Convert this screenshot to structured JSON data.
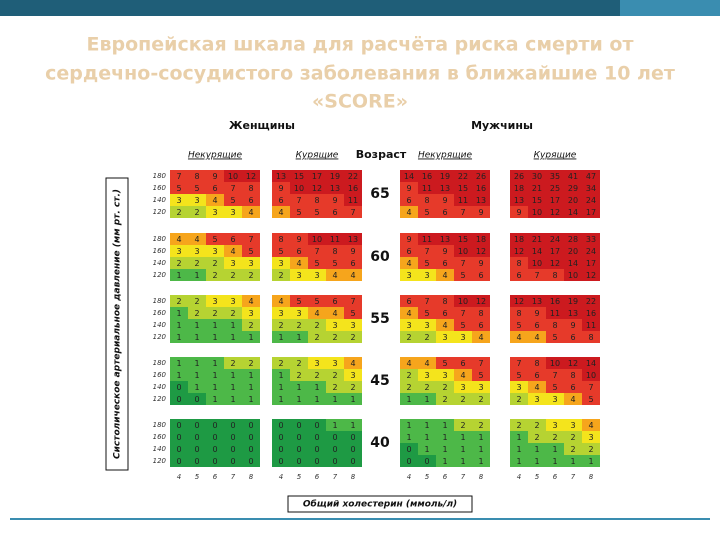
{
  "title_lines": [
    "Европейская шкала для расчёта риска смерти от",
    "сердечно-сосудистого заболевания в ближайшие 10 лет",
    "«SCORE»"
  ],
  "women": "Женщины",
  "men": "Мужчины",
  "age_header": "Возраст",
  "group_labels": [
    "Некурящие",
    "Курящие",
    "Некурящие",
    "Курящие"
  ],
  "sbp": [
    180,
    160,
    140,
    120
  ],
  "cholesterol": [
    4,
    5,
    6,
    7,
    8
  ],
  "y_label": "Систолическое артериальное давление (мм рт. ст.)",
  "x_label": "Общий холестерин (ммоль/л)",
  "blocks": [
    {
      "age": 65,
      "grids": [
        [
          [
            7,
            8,
            9,
            10,
            12
          ],
          [
            5,
            5,
            6,
            7,
            8
          ],
          [
            3,
            3,
            4,
            5,
            6
          ],
          [
            2,
            2,
            3,
            3,
            4
          ]
        ],
        [
          [
            13,
            15,
            17,
            19,
            22
          ],
          [
            9,
            10,
            12,
            13,
            16
          ],
          [
            6,
            7,
            8,
            9,
            11
          ],
          [
            4,
            5,
            5,
            6,
            7
          ]
        ],
        [
          [
            14,
            16,
            19,
            22,
            26
          ],
          [
            9,
            11,
            13,
            15,
            16
          ],
          [
            6,
            8,
            9,
            11,
            13
          ],
          [
            4,
            5,
            6,
            7,
            9
          ]
        ],
        [
          [
            26,
            30,
            35,
            41,
            47
          ],
          [
            18,
            21,
            25,
            29,
            34
          ],
          [
            13,
            15,
            17,
            20,
            24
          ],
          [
            9,
            10,
            12,
            14,
            17
          ]
        ]
      ]
    },
    {
      "age": 60,
      "grids": [
        [
          [
            4,
            4,
            5,
            6,
            7
          ],
          [
            3,
            3,
            3,
            4,
            5
          ],
          [
            2,
            2,
            2,
            3,
            3
          ],
          [
            1,
            1,
            2,
            2,
            2
          ]
        ],
        [
          [
            8,
            9,
            10,
            11,
            13
          ],
          [
            5,
            6,
            7,
            8,
            9
          ],
          [
            3,
            4,
            5,
            5,
            6
          ],
          [
            2,
            3,
            3,
            4,
            4
          ]
        ],
        [
          [
            9,
            11,
            13,
            15,
            18
          ],
          [
            6,
            7,
            9,
            10,
            12
          ],
          [
            4,
            5,
            6,
            7,
            9
          ],
          [
            3,
            3,
            4,
            5,
            6
          ]
        ],
        [
          [
            18,
            21,
            24,
            28,
            33
          ],
          [
            12,
            14,
            17,
            20,
            24
          ],
          [
            8,
            10,
            12,
            14,
            17
          ],
          [
            6,
            7,
            8,
            10,
            12
          ]
        ]
      ]
    },
    {
      "age": 55,
      "grids": [
        [
          [
            2,
            2,
            3,
            3,
            4
          ],
          [
            1,
            2,
            2,
            2,
            3
          ],
          [
            1,
            1,
            1,
            1,
            2
          ],
          [
            1,
            1,
            1,
            1,
            1
          ]
        ],
        [
          [
            4,
            5,
            5,
            6,
            7
          ],
          [
            3,
            3,
            4,
            4,
            5
          ],
          [
            2,
            2,
            2,
            3,
            3
          ],
          [
            1,
            1,
            2,
            2,
            2
          ]
        ],
        [
          [
            6,
            7,
            8,
            10,
            12
          ],
          [
            4,
            5,
            6,
            7,
            8
          ],
          [
            3,
            3,
            4,
            5,
            6
          ],
          [
            2,
            2,
            3,
            3,
            4
          ]
        ],
        [
          [
            12,
            13,
            16,
            19,
            22
          ],
          [
            8,
            9,
            11,
            13,
            16
          ],
          [
            5,
            6,
            8,
            9,
            11
          ],
          [
            4,
            4,
            5,
            6,
            8
          ]
        ]
      ]
    },
    {
      "age": 45,
      "grids": [
        [
          [
            1,
            1,
            1,
            2,
            2
          ],
          [
            1,
            1,
            1,
            1,
            1
          ],
          [
            0,
            1,
            1,
            1,
            1
          ],
          [
            0,
            0,
            1,
            1,
            1
          ]
        ],
        [
          [
            2,
            2,
            3,
            3,
            4
          ],
          [
            1,
            2,
            2,
            2,
            3
          ],
          [
            1,
            1,
            1,
            2,
            2
          ],
          [
            1,
            1,
            1,
            1,
            1
          ]
        ],
        [
          [
            4,
            4,
            5,
            6,
            7
          ],
          [
            2,
            3,
            3,
            4,
            5
          ],
          [
            2,
            2,
            2,
            3,
            3
          ],
          [
            1,
            1,
            2,
            2,
            2
          ]
        ],
        [
          [
            7,
            8,
            10,
            12,
            14
          ],
          [
            5,
            6,
            7,
            8,
            10
          ],
          [
            3,
            4,
            5,
            6,
            7
          ],
          [
            2,
            3,
            3,
            4,
            5
          ]
        ]
      ]
    },
    {
      "age": 40,
      "grids": [
        [
          [
            0,
            0,
            0,
            0,
            0
          ],
          [
            0,
            0,
            0,
            0,
            0
          ],
          [
            0,
            0,
            0,
            0,
            0
          ],
          [
            0,
            0,
            0,
            0,
            0
          ]
        ],
        [
          [
            0,
            0,
            0,
            1,
            1
          ],
          [
            0,
            0,
            0,
            0,
            0
          ],
          [
            0,
            0,
            0,
            0,
            0
          ],
          [
            0,
            0,
            0,
            0,
            0
          ]
        ],
        [
          [
            1,
            1,
            1,
            2,
            2
          ],
          [
            1,
            1,
            1,
            1,
            1
          ],
          [
            0,
            1,
            1,
            1,
            1
          ],
          [
            0,
            0,
            1,
            1,
            1
          ]
        ],
        [
          [
            2,
            2,
            3,
            3,
            4
          ],
          [
            1,
            2,
            2,
            2,
            3
          ],
          [
            1,
            1,
            1,
            2,
            2
          ],
          [
            1,
            1,
            1,
            1,
            1
          ]
        ]
      ]
    }
  ]
}
